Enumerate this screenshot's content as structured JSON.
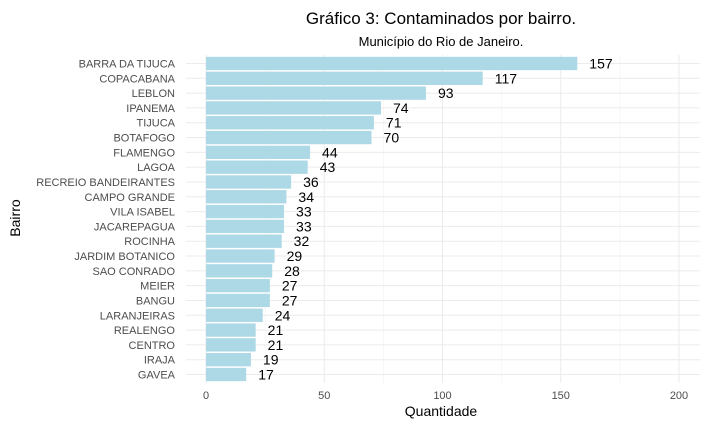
{
  "chart_data": {
    "type": "bar",
    "orientation": "horizontal",
    "title": "Gráfico 3: Contaminados por bairro.",
    "subtitle": "Município do Rio de Janeiro.",
    "xlabel": "Quantidade",
    "ylabel": "Bairro",
    "xlim": [
      0,
      200
    ],
    "xticks": [
      0,
      50,
      100,
      150,
      200
    ],
    "grid": true,
    "bar_color": "#add8e6",
    "categories": [
      "BARRA DA TIJUCA",
      "COPACABANA",
      "LEBLON",
      "IPANEMA",
      "TIJUCA",
      "BOTAFOGO",
      "FLAMENGO",
      "LAGOA",
      "RECREIO BANDEIRANTES",
      "CAMPO GRANDE",
      "VILA ISABEL",
      "JACAREPAGUA",
      "ROCINHA",
      "JARDIM BOTANICO",
      "SAO CONRADO",
      "MEIER",
      "BANGU",
      "LARANJEIRAS",
      "REALENGO",
      "CENTRO",
      "IRAJA",
      "GAVEA"
    ],
    "values": [
      157,
      117,
      93,
      74,
      71,
      70,
      44,
      43,
      36,
      34,
      33,
      33,
      32,
      29,
      28,
      27,
      27,
      24,
      21,
      21,
      19,
      17
    ]
  }
}
